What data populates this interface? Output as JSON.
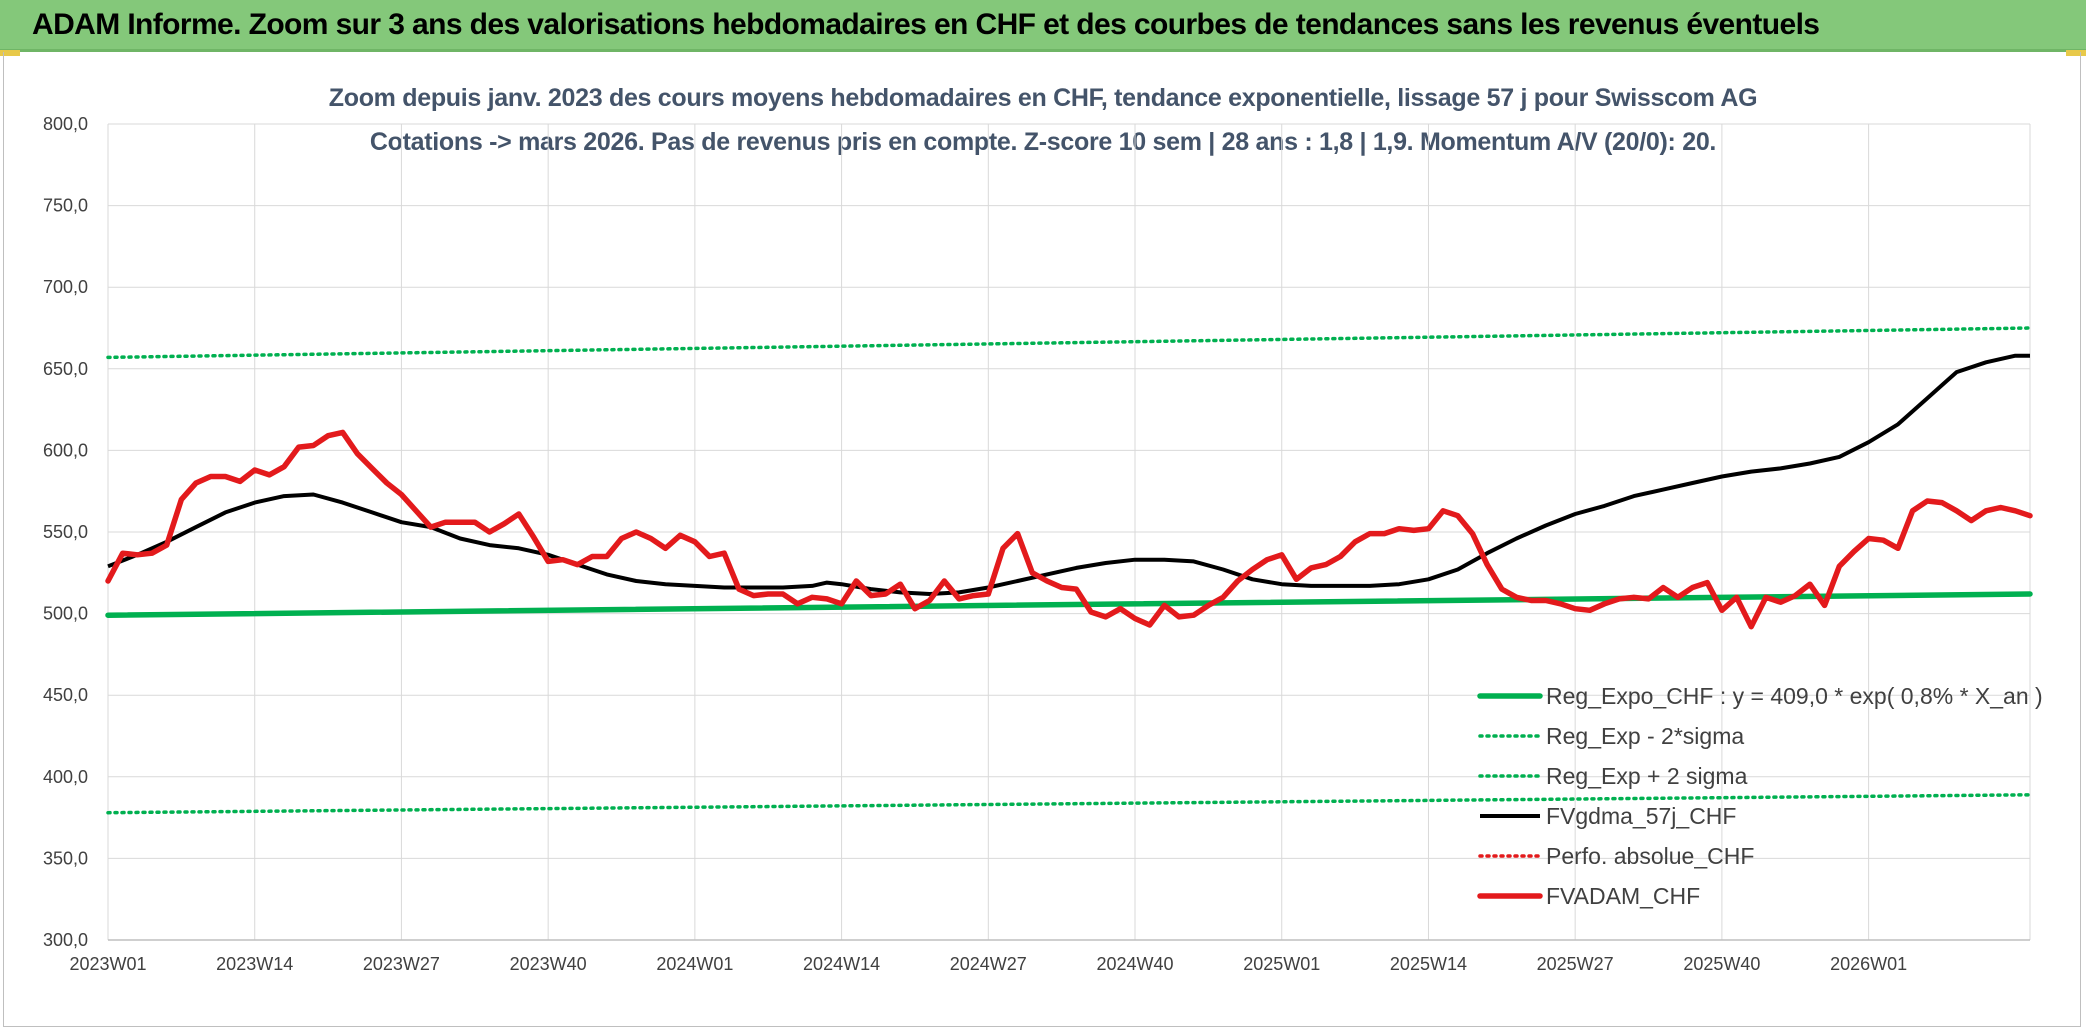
{
  "header": {
    "banner_title": "ADAM Informe. Zoom sur 3 ans des valorisations hebdomadaires en CHF et des courbes de tendances sans les revenus éventuels"
  },
  "chart_data": {
    "type": "line",
    "title": "Zoom depuis janv. 2023 des cours moyens hebdomadaires en CHF, tendance exponentielle, lissage 57 j pour Swisscom AG",
    "subtitle": "Cotations -> mars 2026. Pas de revenus pris en compte. Z-score 10 sem | 28 ans : 1,8 | 1,9. Momentum A/V (20/0): 20.",
    "xlabel": "",
    "ylabel": "",
    "ylim": [
      300,
      800
    ],
    "xlim": [
      0,
      131
    ],
    "y_ticks": [
      "300,0",
      "350,0",
      "400,0",
      "450,0",
      "500,0",
      "550,0",
      "600,0",
      "650,0",
      "700,0",
      "750,0",
      "800,0"
    ],
    "x_ticks": [
      {
        "label": "2023W01",
        "index": 0
      },
      {
        "label": "2023W14",
        "index": 10
      },
      {
        "label": "2023W27",
        "index": 20
      },
      {
        "label": "2023W40",
        "index": 30
      },
      {
        "label": "2024W01",
        "index": 40
      },
      {
        "label": "2024W14",
        "index": 50
      },
      {
        "label": "2024W27",
        "index": 60
      },
      {
        "label": "2024W40",
        "index": 70
      },
      {
        "label": "2025W01",
        "index": 80
      },
      {
        "label": "2025W14",
        "index": 90
      },
      {
        "label": "2025W27",
        "index": 100
      },
      {
        "label": "2025W40",
        "index": 110
      },
      {
        "label": "2026W01",
        "index": 120
      }
    ],
    "grid": true,
    "legend_position": "bottom-right",
    "colors": {
      "green": "#00b050",
      "black": "#000000",
      "red": "#e31a1c",
      "grid": "#d9d9d9"
    },
    "series": [
      {
        "name": "Reg_Expo_CHF : y = 409,0 * exp( 0,8% *  X_an )",
        "style": "solid-thick",
        "color": "#00b050",
        "points": [
          [
            0,
            499
          ],
          [
            131,
            512
          ]
        ]
      },
      {
        "name": "Reg_Exp - 2*sigma",
        "style": "dotted",
        "color": "#00b050",
        "points": [
          [
            0,
            378
          ],
          [
            131,
            389
          ]
        ]
      },
      {
        "name": "Reg_Exp + 2 sigma",
        "style": "dotted",
        "color": "#00b050",
        "points": [
          [
            0,
            657
          ],
          [
            131,
            675
          ]
        ]
      },
      {
        "name": "FVgdma_57j_CHF",
        "style": "solid",
        "color": "#000000",
        "points": [
          [
            0,
            529
          ],
          [
            2,
            536
          ],
          [
            4,
            544
          ],
          [
            6,
            553
          ],
          [
            8,
            562
          ],
          [
            10,
            568
          ],
          [
            12,
            572
          ],
          [
            14,
            573
          ],
          [
            16,
            568
          ],
          [
            18,
            562
          ],
          [
            20,
            556
          ],
          [
            22,
            553
          ],
          [
            24,
            546
          ],
          [
            26,
            542
          ],
          [
            28,
            540
          ],
          [
            30,
            536
          ],
          [
            32,
            530
          ],
          [
            34,
            524
          ],
          [
            36,
            520
          ],
          [
            38,
            518
          ],
          [
            40,
            517
          ],
          [
            42,
            516
          ],
          [
            44,
            516
          ],
          [
            46,
            516
          ],
          [
            48,
            517
          ],
          [
            49,
            519
          ],
          [
            50,
            518
          ],
          [
            52,
            515
          ],
          [
            54,
            513
          ],
          [
            56,
            512
          ],
          [
            58,
            513
          ],
          [
            60,
            516
          ],
          [
            62,
            520
          ],
          [
            64,
            524
          ],
          [
            66,
            528
          ],
          [
            68,
            531
          ],
          [
            70,
            533
          ],
          [
            72,
            533
          ],
          [
            74,
            532
          ],
          [
            76,
            527
          ],
          [
            78,
            521
          ],
          [
            80,
            518
          ],
          [
            82,
            517
          ],
          [
            84,
            517
          ],
          [
            86,
            517
          ],
          [
            88,
            518
          ],
          [
            90,
            521
          ],
          [
            92,
            527
          ],
          [
            94,
            537
          ],
          [
            96,
            546
          ],
          [
            98,
            554
          ],
          [
            100,
            561
          ],
          [
            102,
            566
          ],
          [
            104,
            572
          ],
          [
            106,
            576
          ],
          [
            108,
            580
          ],
          [
            110,
            584
          ],
          [
            112,
            587
          ],
          [
            114,
            589
          ],
          [
            116,
            592
          ],
          [
            118,
            596
          ],
          [
            120,
            605
          ],
          [
            122,
            616
          ],
          [
            124,
            632
          ],
          [
            126,
            648
          ],
          [
            128,
            654
          ],
          [
            130,
            658
          ],
          [
            131,
            658
          ]
        ]
      },
      {
        "name": "Perfo. absolue_CHF",
        "style": "dotted",
        "color": "#e31a1c",
        "points": []
      },
      {
        "name": "FVADAM_CHF",
        "style": "solid-thick",
        "color": "#e31a1c",
        "points": [
          [
            0,
            520
          ],
          [
            1,
            537
          ],
          [
            2,
            536
          ],
          [
            3,
            537
          ],
          [
            4,
            542
          ],
          [
            5,
            570
          ],
          [
            6,
            580
          ],
          [
            7,
            584
          ],
          [
            8,
            584
          ],
          [
            9,
            581
          ],
          [
            10,
            588
          ],
          [
            11,
            585
          ],
          [
            12,
            590
          ],
          [
            13,
            602
          ],
          [
            14,
            603
          ],
          [
            15,
            609
          ],
          [
            16,
            611
          ],
          [
            17,
            598
          ],
          [
            18,
            589
          ],
          [
            19,
            580
          ],
          [
            20,
            573
          ],
          [
            21,
            563
          ],
          [
            22,
            553
          ],
          [
            23,
            556
          ],
          [
            24,
            556
          ],
          [
            25,
            556
          ],
          [
            26,
            550
          ],
          [
            27,
            555
          ],
          [
            28,
            561
          ],
          [
            29,
            547
          ],
          [
            30,
            532
          ],
          [
            31,
            533
          ],
          [
            32,
            530
          ],
          [
            33,
            535
          ],
          [
            34,
            535
          ],
          [
            35,
            546
          ],
          [
            36,
            550
          ],
          [
            37,
            546
          ],
          [
            38,
            540
          ],
          [
            39,
            548
          ],
          [
            40,
            544
          ],
          [
            41,
            535
          ],
          [
            42,
            537
          ],
          [
            43,
            515
          ],
          [
            44,
            511
          ],
          [
            45,
            512
          ],
          [
            46,
            512
          ],
          [
            47,
            506
          ],
          [
            48,
            510
          ],
          [
            49,
            509
          ],
          [
            50,
            506
          ],
          [
            51,
            520
          ],
          [
            52,
            511
          ],
          [
            53,
            512
          ],
          [
            54,
            518
          ],
          [
            55,
            503
          ],
          [
            56,
            508
          ],
          [
            57,
            520
          ],
          [
            58,
            509
          ],
          [
            59,
            511
          ],
          [
            60,
            512
          ],
          [
            61,
            540
          ],
          [
            62,
            549
          ],
          [
            63,
            525
          ],
          [
            64,
            520
          ],
          [
            65,
            516
          ],
          [
            66,
            515
          ],
          [
            67,
            501
          ],
          [
            68,
            498
          ],
          [
            69,
            503
          ],
          [
            70,
            497
          ],
          [
            71,
            493
          ],
          [
            72,
            505
          ],
          [
            73,
            498
          ],
          [
            74,
            499
          ],
          [
            75,
            505
          ],
          [
            76,
            510
          ],
          [
            77,
            520
          ],
          [
            78,
            527
          ],
          [
            79,
            533
          ],
          [
            80,
            536
          ],
          [
            81,
            521
          ],
          [
            82,
            528
          ],
          [
            83,
            530
          ],
          [
            84,
            535
          ],
          [
            85,
            544
          ],
          [
            86,
            549
          ],
          [
            87,
            549
          ],
          [
            88,
            552
          ],
          [
            89,
            551
          ],
          [
            90,
            552
          ],
          [
            91,
            563
          ],
          [
            92,
            560
          ],
          [
            93,
            549
          ],
          [
            94,
            530
          ],
          [
            95,
            515
          ],
          [
            96,
            510
          ],
          [
            97,
            508
          ],
          [
            98,
            508
          ],
          [
            99,
            506
          ],
          [
            100,
            503
          ],
          [
            101,
            502
          ],
          [
            102,
            506
          ],
          [
            103,
            509
          ],
          [
            104,
            510
          ],
          [
            105,
            509
          ],
          [
            106,
            516
          ],
          [
            107,
            510
          ],
          [
            108,
            516
          ],
          [
            109,
            519
          ],
          [
            110,
            502
          ],
          [
            111,
            510
          ],
          [
            112,
            492
          ],
          [
            113,
            510
          ],
          [
            114,
            507
          ],
          [
            115,
            511
          ],
          [
            116,
            518
          ],
          [
            117,
            505
          ],
          [
            118,
            529
          ],
          [
            119,
            538
          ],
          [
            120,
            546
          ],
          [
            121,
            545
          ],
          [
            122,
            540
          ],
          [
            123,
            563
          ],
          [
            124,
            569
          ],
          [
            125,
            568
          ],
          [
            126,
            563
          ],
          [
            127,
            557
          ],
          [
            128,
            563
          ],
          [
            129,
            565
          ],
          [
            130,
            563
          ],
          [
            131,
            560
          ]
        ]
      }
    ]
  }
}
